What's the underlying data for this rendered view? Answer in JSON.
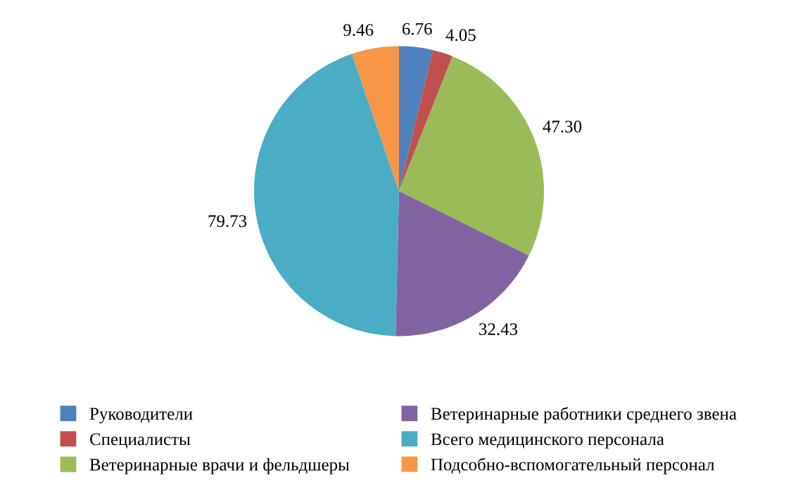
{
  "chart_data": {
    "type": "pie",
    "categories": [
      "Руководители",
      "Специалисты",
      "Ветеринарные врачи и фельдшеры",
      "Ветеринарные работники среднего звена",
      "Всего медицинского персонала",
      "Подсобно-вспомогательный персонал"
    ],
    "values": [
      6.76,
      4.05,
      47.3,
      32.43,
      79.73,
      9.46
    ],
    "value_labels": [
      "6.76",
      "4.05",
      "47.30",
      "32.43",
      "79.73",
      "9.46"
    ],
    "colors": [
      "#4f81bd",
      "#c0504d",
      "#9bbb59",
      "#8064a2",
      "#4bacc6",
      "#f79646"
    ],
    "legend": "bottom"
  }
}
